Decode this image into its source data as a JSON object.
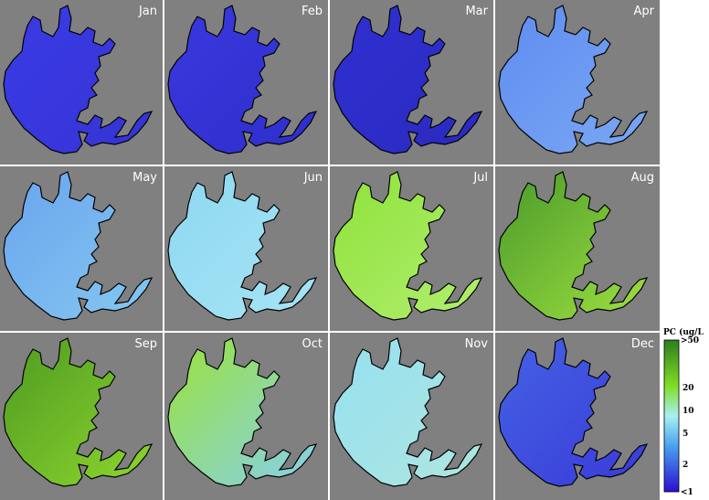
{
  "panels": [
    {
      "label": "Jan"
    },
    {
      "label": "Feb"
    },
    {
      "label": "Mar"
    },
    {
      "label": "Apr"
    },
    {
      "label": "May"
    },
    {
      "label": "Jun"
    },
    {
      "label": "Jul"
    },
    {
      "label": "Aug"
    },
    {
      "label": "Sep"
    },
    {
      "label": "Oct"
    },
    {
      "label": "Nov"
    },
    {
      "label": "Dec"
    }
  ],
  "legend": {
    "title": "PC (ug/L",
    "labels": [
      ">50",
      "20",
      "10",
      "5",
      "2",
      "<1"
    ]
  }
}
